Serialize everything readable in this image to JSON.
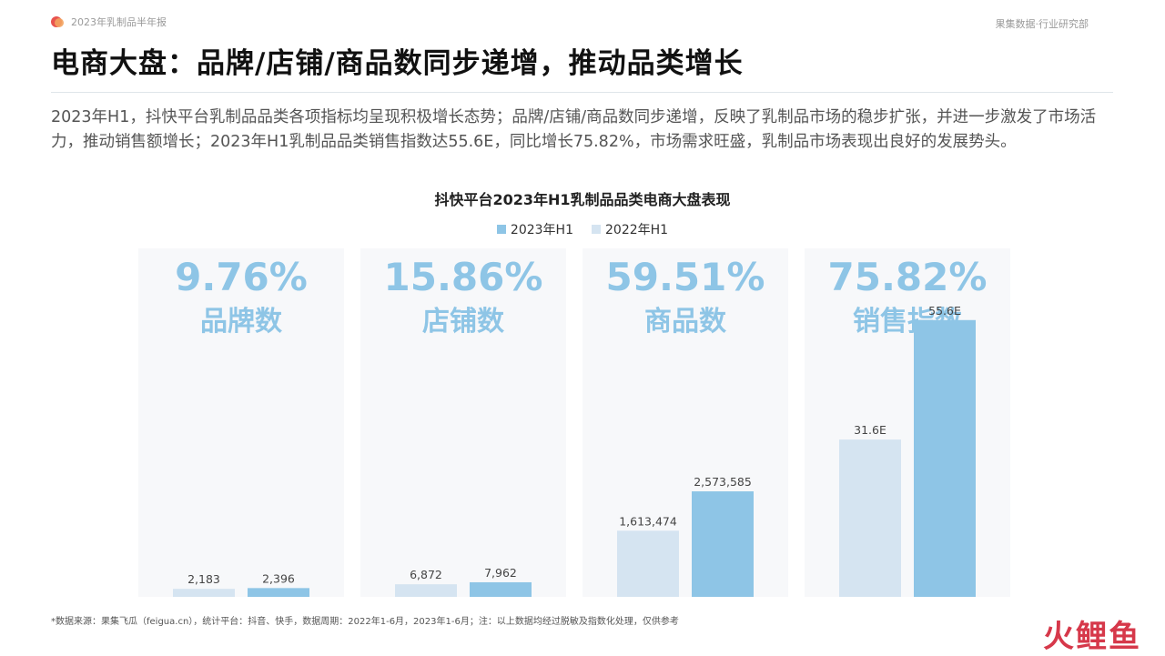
{
  "header": {
    "report_tag": "2023年乳制品半年报",
    "source_tag": "果集数据·行业研究部"
  },
  "page_title": "电商大盘：品牌/店铺/商品数同步递增，推动品类增长",
  "summary": "2023年H1，抖快平台乳制品品类各项指标均呈现积极增长态势；品牌/店铺/商品数同步递增，反映了乳制品市场的稳步扩张，并进一步激发了市场活力，推动销售额增长；2023年H1乳制品品类销售指数达55.6E，同比增长75.82%，市场需求旺盛，乳制品市场表现出良好的发展势头。",
  "footnote": "*数据来源：果集飞瓜（feigua.cn），统计平台：抖音、快手，数据周期：2022年1-6月，2023年1-6月；注：以上数据均经过脱敏及指数化处理，仅供参考",
  "watermark": "火鲤鱼",
  "colors": {
    "series_2023": "#8ec5e6",
    "series_2022": "#d5e4f1",
    "panel_bg": "#f7f8fa",
    "growth_text": "#8ec5e6"
  },
  "chart_data": {
    "type": "bar",
    "title": "抖快平台2023年H1乳制品品类电商大盘表现",
    "legend_position": "top",
    "series": [
      {
        "name": "2023年H1"
      },
      {
        "name": "2022年H1"
      }
    ],
    "panels": [
      {
        "metric": "品牌数",
        "growth": "9.76%",
        "value_2022": 2183,
        "value_2023": 2396,
        "label_2022": "2,183",
        "label_2023": "2,396",
        "ymax": 95000
      },
      {
        "metric": "店铺数",
        "growth": "15.86%",
        "value_2022": 6872,
        "value_2023": 7962,
        "label_2022": "6,872",
        "label_2023": "7,962",
        "ymax": 190000
      },
      {
        "metric": "商品数",
        "growth": "59.51%",
        "value_2022": 1613474,
        "value_2023": 2573585,
        "label_2022": "1,613,474",
        "label_2023": "2,573,585",
        "ymax": 8500000
      },
      {
        "metric": "销售指数",
        "growth": "75.82%",
        "value_2022": 31.6,
        "value_2023": 55.6,
        "label_2022": "31.6E",
        "label_2023": "55.6E",
        "ymax": 70
      }
    ]
  }
}
